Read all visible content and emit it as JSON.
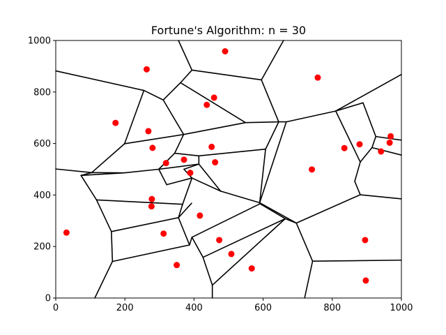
{
  "chart_data": {
    "type": "scatter",
    "title": "Fortune's Algorithm: n = 30",
    "xlabel": "",
    "ylabel": "",
    "xlim": [
      0,
      1000
    ],
    "ylim": [
      0,
      1000
    ],
    "xticks": [
      "0",
      "200",
      "400",
      "600",
      "800",
      "1000"
    ],
    "yticks": [
      "0",
      "200",
      "400",
      "600",
      "800",
      "1000"
    ],
    "grid": false,
    "point_color": "#ff0000",
    "edge_color": "#000000",
    "points": [
      [
        490,
        958
      ],
      [
        263,
        888
      ],
      [
        758,
        856
      ],
      [
        458,
        778
      ],
      [
        437,
        750
      ],
      [
        173,
        680
      ],
      [
        268,
        648
      ],
      [
        280,
        583
      ],
      [
        451,
        587
      ],
      [
        835,
        582
      ],
      [
        879,
        597
      ],
      [
        969,
        628
      ],
      [
        966,
        603
      ],
      [
        941,
        569
      ],
      [
        371,
        537
      ],
      [
        319,
        524
      ],
      [
        461,
        527
      ],
      [
        741,
        499
      ],
      [
        389,
        486
      ],
      [
        278,
        384
      ],
      [
        277,
        356
      ],
      [
        417,
        320
      ],
      [
        312,
        250
      ],
      [
        31,
        254
      ],
      [
        473,
        225
      ],
      [
        895,
        225
      ],
      [
        508,
        171
      ],
      [
        350,
        128
      ],
      [
        567,
        115
      ],
      [
        897,
        68
      ]
    ],
    "edges": [
      [
        [
          0,
          882
        ],
        [
          255,
          806
        ]
      ],
      [
        [
          255,
          806
        ],
        [
          311,
          769
        ]
      ],
      [
        [
          255,
          806
        ],
        [
          199,
          599
        ]
      ],
      [
        [
          311,
          769
        ],
        [
          361,
          836
        ]
      ],
      [
        [
          311,
          769
        ],
        [
          370,
          635
        ]
      ],
      [
        [
          361,
          836
        ],
        [
          394,
          885
        ]
      ],
      [
        [
          361,
          836
        ],
        [
          549,
          681
        ]
      ],
      [
        [
          394,
          885
        ],
        [
          595,
          847
        ]
      ],
      [
        [
          394,
          885
        ],
        [
          355,
          1000
        ]
      ],
      [
        [
          595,
          847
        ],
        [
          645,
          684
        ]
      ],
      [
        [
          595,
          847
        ],
        [
          659,
          1000
        ]
      ],
      [
        [
          549,
          681
        ],
        [
          645,
          684
        ]
      ],
      [
        [
          370,
          635
        ],
        [
          549,
          681
        ]
      ],
      [
        [
          645,
          684
        ],
        [
          667,
          684
        ]
      ],
      [
        [
          645,
          684
        ],
        [
          607,
          578
        ]
      ],
      [
        [
          667,
          684
        ],
        [
          810,
          726
        ]
      ],
      [
        [
          667,
          684
        ],
        [
          590,
          370
        ]
      ],
      [
        [
          810,
          726
        ],
        [
          1000,
          868
        ]
      ],
      [
        [
          810,
          726
        ],
        [
          889,
          758
        ]
      ],
      [
        [
          810,
          726
        ],
        [
          881,
          528
        ]
      ],
      [
        [
          889,
          758
        ],
        [
          926,
          627
        ]
      ],
      [
        [
          926,
          627
        ],
        [
          1000,
          613
        ]
      ],
      [
        [
          926,
          627
        ],
        [
          915,
          584
        ]
      ],
      [
        [
          915,
          584
        ],
        [
          1000,
          555
        ]
      ],
      [
        [
          915,
          584
        ],
        [
          881,
          528
        ]
      ],
      [
        [
          881,
          528
        ],
        [
          865,
          453
        ]
      ],
      [
        [
          865,
          453
        ],
        [
          881,
          401
        ]
      ],
      [
        [
          881,
          401
        ],
        [
          1000,
          385
        ]
      ],
      [
        [
          881,
          401
        ],
        [
          696,
          291
        ]
      ],
      [
        [
          696,
          291
        ],
        [
          590,
          370
        ]
      ],
      [
        [
          696,
          291
        ],
        [
          743,
          143
        ]
      ],
      [
        [
          743,
          143
        ],
        [
          1000,
          147
        ]
      ],
      [
        [
          743,
          143
        ],
        [
          720,
          0
        ]
      ],
      [
        [
          199,
          599
        ],
        [
          370,
          635
        ]
      ],
      [
        [
          199,
          599
        ],
        [
          104,
          487
        ]
      ],
      [
        [
          370,
          635
        ],
        [
          344,
          562
        ]
      ],
      [
        [
          344,
          562
        ],
        [
          298,
          500
        ]
      ],
      [
        [
          344,
          562
        ],
        [
          414,
          552
        ]
      ],
      [
        [
          414,
          552
        ],
        [
          607,
          578
        ]
      ],
      [
        [
          414,
          552
        ],
        [
          414,
          520
        ]
      ],
      [
        [
          298,
          500
        ],
        [
          414,
          520
        ]
      ],
      [
        [
          298,
          500
        ],
        [
          198,
          486
        ]
      ],
      [
        [
          298,
          500
        ],
        [
          321,
          440
        ]
      ],
      [
        [
          414,
          520
        ],
        [
          477,
          415
        ]
      ],
      [
        [
          414,
          520
        ],
        [
          371,
          500
        ]
      ],
      [
        [
          371,
          500
        ],
        [
          394,
          466
        ]
      ],
      [
        [
          321,
          440
        ],
        [
          394,
          466
        ]
      ],
      [
        [
          394,
          466
        ],
        [
          477,
          415
        ]
      ],
      [
        [
          477,
          415
        ],
        [
          590,
          370
        ]
      ],
      [
        [
          607,
          578
        ],
        [
          590,
          370
        ]
      ],
      [
        [
          104,
          487
        ],
        [
          198,
          486
        ]
      ],
      [
        [
          104,
          487
        ],
        [
          0,
          501
        ]
      ],
      [
        [
          104,
          487
        ],
        [
          73,
          476
        ]
      ],
      [
        [
          198,
          486
        ],
        [
          73,
          476
        ]
      ],
      [
        [
          73,
          476
        ],
        [
          118,
          381
        ]
      ],
      [
        [
          118,
          381
        ],
        [
          367,
          364
        ]
      ],
      [
        [
          118,
          381
        ],
        [
          161,
          258
        ]
      ],
      [
        [
          367,
          364
        ],
        [
          394,
          466
        ]
      ],
      [
        [
          367,
          364
        ],
        [
          355,
          312
        ]
      ],
      [
        [
          161,
          258
        ],
        [
          355,
          312
        ]
      ],
      [
        [
          161,
          258
        ],
        [
          164,
          142
        ]
      ],
      [
        [
          164,
          142
        ],
        [
          387,
          206
        ]
      ],
      [
        [
          164,
          142
        ],
        [
          113,
          0
        ]
      ],
      [
        [
          355,
          312
        ],
        [
          387,
          206
        ]
      ],
      [
        [
          355,
          312
        ],
        [
          393,
          368
        ]
      ],
      [
        [
          387,
          206
        ],
        [
          394,
          236
        ]
      ],
      [
        [
          394,
          236
        ],
        [
          591,
          366
        ]
      ],
      [
        [
          394,
          236
        ],
        [
          426,
          158
        ]
      ],
      [
        [
          591,
          366
        ],
        [
          590,
          370
        ]
      ],
      [
        [
          591,
          366
        ],
        [
          664,
          308
        ]
      ],
      [
        [
          426,
          158
        ],
        [
          664,
          308
        ]
      ],
      [
        [
          426,
          158
        ],
        [
          453,
          50
        ]
      ],
      [
        [
          453,
          50
        ],
        [
          664,
          308
        ]
      ],
      [
        [
          453,
          50
        ],
        [
          453,
          0
        ]
      ],
      [
        [
          664,
          308
        ],
        [
          696,
          291
        ]
      ]
    ]
  }
}
